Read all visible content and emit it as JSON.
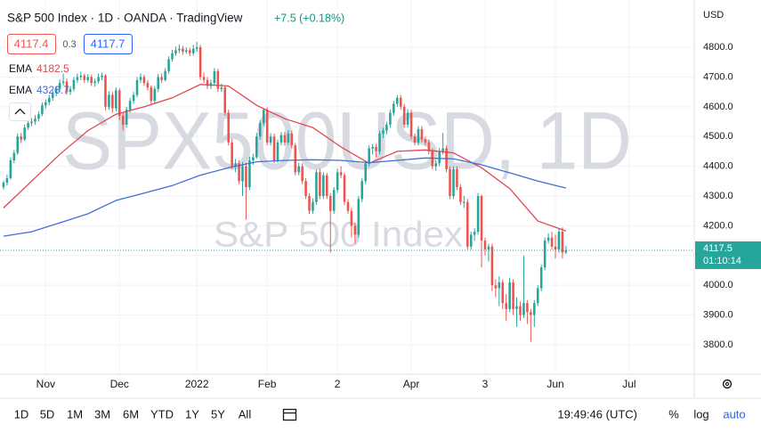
{
  "header": {
    "title": "S&P 500 Index · 1D · OANDA · TradingView",
    "change": "+7.5 (+0.18%)",
    "bid": "4117.4",
    "spread": "0.3",
    "ask": "4117.7"
  },
  "watermark": {
    "symbol": "SPX500USD, 1D",
    "description": "S&P 500 Index"
  },
  "toolbar": {
    "ranges": [
      "1D",
      "5D",
      "1M",
      "3M",
      "6M",
      "YTD",
      "1Y",
      "5Y",
      "All"
    ],
    "clock": "19:49:46 (UTC)",
    "percent": "%",
    "log": "log",
    "auto": "auto"
  },
  "chart_data": {
    "type": "candlestick",
    "currency": "USD",
    "up_color": "#26a69a",
    "down_color": "#ef5350",
    "grid": true,
    "last_price": 4117.5,
    "countdown": "01:10:14",
    "ylim": [
      3701,
      4959
    ],
    "yticks": [
      {
        "value": 3800,
        "label": "3800.0"
      },
      {
        "value": 3900,
        "label": "3900.0"
      },
      {
        "value": 4000,
        "label": "4000.0"
      },
      {
        "value": 4100,
        "label": "4100.0"
      },
      {
        "value": 4200,
        "label": "4200.0"
      },
      {
        "value": 4300,
        "label": "4300.0"
      },
      {
        "value": 4400,
        "label": "4400.0"
      },
      {
        "value": 4500,
        "label": "4500.0"
      },
      {
        "value": 4600,
        "label": "4600.0"
      },
      {
        "value": 4700,
        "label": "4700.0"
      },
      {
        "value": 4800,
        "label": "4800.0"
      }
    ],
    "xlim": [
      -1,
      196.5
    ],
    "xticks": [
      {
        "value": 12,
        "label": "Nov"
      },
      {
        "value": 33,
        "label": "Dec"
      },
      {
        "value": 55,
        "label": "2022"
      },
      {
        "value": 75,
        "label": "Feb"
      },
      {
        "value": 95,
        "label": "2"
      },
      {
        "value": 116,
        "label": "Apr"
      },
      {
        "value": 137,
        "label": "3"
      },
      {
        "value": 157,
        "label": "Jun"
      },
      {
        "value": 178,
        "label": "Jul"
      }
    ],
    "candles": [
      [
        4330,
        4352,
        4322,
        4345
      ],
      [
        4345,
        4372,
        4335,
        4360
      ],
      [
        4360,
        4430,
        4355,
        4420
      ],
      [
        4420,
        4455,
        4410,
        4445
      ],
      [
        4445,
        4510,
        4438,
        4500
      ],
      [
        4500,
        4512,
        4478,
        4490
      ],
      [
        4490,
        4540,
        4485,
        4530
      ],
      [
        4530,
        4555,
        4522,
        4545
      ],
      [
        4545,
        4562,
        4535,
        4550
      ],
      [
        4550,
        4572,
        4540,
        4560
      ],
      [
        4560,
        4585,
        4550,
        4575
      ],
      [
        4575,
        4615,
        4568,
        4605
      ],
      [
        4605,
        4625,
        4595,
        4615
      ],
      [
        4615,
        4640,
        4605,
        4630
      ],
      [
        4630,
        4655,
        4620,
        4645
      ],
      [
        4645,
        4670,
        4635,
        4660
      ],
      [
        4660,
        4692,
        4650,
        4680
      ],
      [
        4680,
        4712,
        4672,
        4685
      ],
      [
        4685,
        4695,
        4640,
        4650
      ],
      [
        4650,
        4670,
        4640,
        4660
      ],
      [
        4660,
        4700,
        4652,
        4690
      ],
      [
        4690,
        4712,
        4680,
        4700
      ],
      [
        4700,
        4718,
        4690,
        4705
      ],
      [
        4705,
        4712,
        4680,
        4690
      ],
      [
        4690,
        4710,
        4682,
        4700
      ],
      [
        4700,
        4708,
        4670,
        4680
      ],
      [
        4680,
        4695,
        4668,
        4685
      ],
      [
        4685,
        4712,
        4678,
        4700
      ],
      [
        4700,
        4715,
        4690,
        4705
      ],
      [
        4705,
        4710,
        4588,
        4600
      ],
      [
        4600,
        4652,
        4590,
        4640
      ],
      [
        4640,
        4650,
        4580,
        4595
      ],
      [
        4595,
        4665,
        4585,
        4655
      ],
      [
        4655,
        4662,
        4555,
        4570
      ],
      [
        4570,
        4580,
        4520,
        4540
      ],
      [
        4540,
        4600,
        4530,
        4590
      ],
      [
        4590,
        4630,
        4580,
        4620
      ],
      [
        4620,
        4650,
        4610,
        4640
      ],
      [
        4640,
        4700,
        4632,
        4690
      ],
      [
        4690,
        4712,
        4680,
        4700
      ],
      [
        4700,
        4708,
        4670,
        4680
      ],
      [
        4680,
        4690,
        4655,
        4665
      ],
      [
        4665,
        4672,
        4610,
        4620
      ],
      [
        4620,
        4670,
        4612,
        4660
      ],
      [
        4660,
        4710,
        4650,
        4700
      ],
      [
        4700,
        4712,
        4680,
        4690
      ],
      [
        4690,
        4730,
        4685,
        4720
      ],
      [
        4720,
        4770,
        4712,
        4760
      ],
      [
        4760,
        4792,
        4752,
        4780
      ],
      [
        4780,
        4802,
        4772,
        4790
      ],
      [
        4790,
        4810,
        4780,
        4795
      ],
      [
        4795,
        4805,
        4775,
        4785
      ],
      [
        4785,
        4800,
        4778,
        4790
      ],
      [
        4790,
        4798,
        4770,
        4780
      ],
      [
        4780,
        4808,
        4772,
        4795
      ],
      [
        4795,
        4818,
        4785,
        4800
      ],
      [
        4800,
        4808,
        4690,
        4700
      ],
      [
        4700,
        4715,
        4680,
        4690
      ],
      [
        4690,
        4700,
        4660,
        4670
      ],
      [
        4670,
        4692,
        4660,
        4680
      ],
      [
        4680,
        4730,
        4672,
        4720
      ],
      [
        4720,
        4728,
        4650,
        4660
      ],
      [
        4660,
        4678,
        4650,
        4665
      ],
      [
        4665,
        4672,
        4570,
        4580
      ],
      [
        4580,
        4590,
        4470,
        4480
      ],
      [
        4480,
        4492,
        4390,
        4400
      ],
      [
        4400,
        4425,
        4380,
        4410
      ],
      [
        4410,
        4420,
        4340,
        4350
      ],
      [
        4350,
        4415,
        4300,
        4400
      ],
      [
        4400,
        4412,
        4220,
        4330
      ],
      [
        4330,
        4432,
        4320,
        4420
      ],
      [
        4420,
        4442,
        4405,
        4430
      ],
      [
        4430,
        4512,
        4425,
        4500
      ],
      [
        4500,
        4555,
        4490,
        4545
      ],
      [
        4545,
        4595,
        4535,
        4590
      ],
      [
        4590,
        4598,
        4470,
        4480
      ],
      [
        4480,
        4512,
        4470,
        4500
      ],
      [
        4500,
        4510,
        4410,
        4420
      ],
      [
        4420,
        4490,
        4412,
        4480
      ],
      [
        4480,
        4515,
        4470,
        4505
      ],
      [
        4505,
        4515,
        4470,
        4480
      ],
      [
        4480,
        4522,
        4472,
        4510
      ],
      [
        4510,
        4520,
        4460,
        4470
      ],
      [
        4470,
        4478,
        4370,
        4380
      ],
      [
        4380,
        4412,
        4370,
        4400
      ],
      [
        4400,
        4410,
        4340,
        4350
      ],
      [
        4350,
        4360,
        4290,
        4300
      ],
      [
        4300,
        4310,
        4240,
        4250
      ],
      [
        4250,
        4292,
        4240,
        4280
      ],
      [
        4280,
        4390,
        4270,
        4380
      ],
      [
        4380,
        4392,
        4290,
        4300
      ],
      [
        4300,
        4380,
        4290,
        4370
      ],
      [
        4370,
        4378,
        4290,
        4300
      ],
      [
        4300,
        4310,
        4110,
        4250
      ],
      [
        4250,
        4330,
        4240,
        4320
      ],
      [
        4320,
        4392,
        4310,
        4380
      ],
      [
        4380,
        4400,
        4360,
        4370
      ],
      [
        4370,
        4378,
        4270,
        4280
      ],
      [
        4280,
        4290,
        4240,
        4250
      ],
      [
        4250,
        4260,
        4160,
        4200
      ],
      [
        4200,
        4210,
        4140,
        4170
      ],
      [
        4170,
        4300,
        4160,
        4290
      ],
      [
        4290,
        4360,
        4280,
        4350
      ],
      [
        4350,
        4420,
        4340,
        4410
      ],
      [
        4410,
        4470,
        4400,
        4460
      ],
      [
        4460,
        4475,
        4440,
        4465
      ],
      [
        4465,
        4475,
        4430,
        4450
      ],
      [
        4450,
        4520,
        4440,
        4510
      ],
      [
        4510,
        4530,
        4495,
        4520
      ],
      [
        4520,
        4550,
        4508,
        4540
      ],
      [
        4540,
        4590,
        4530,
        4580
      ],
      [
        4580,
        4620,
        4570,
        4610
      ],
      [
        4610,
        4640,
        4600,
        4630
      ],
      [
        4630,
        4640,
        4590,
        4600
      ],
      [
        4600,
        4610,
        4530,
        4540
      ],
      [
        4540,
        4592,
        4530,
        4580
      ],
      [
        4580,
        4590,
        4490,
        4500
      ],
      [
        4500,
        4510,
        4470,
        4480
      ],
      [
        4480,
        4535,
        4470,
        4525
      ],
      [
        4525,
        4535,
        4480,
        4490
      ],
      [
        4490,
        4500,
        4470,
        4480
      ],
      [
        4480,
        4490,
        4440,
        4450
      ],
      [
        4450,
        4460,
        4390,
        4400
      ],
      [
        4400,
        4420,
        4385,
        4410
      ],
      [
        4410,
        4462,
        4400,
        4450
      ],
      [
        4450,
        4512,
        4440,
        4460
      ],
      [
        4460,
        4470,
        4380,
        4390
      ],
      [
        4390,
        4400,
        4290,
        4300
      ],
      [
        4300,
        4400,
        4290,
        4390
      ],
      [
        4390,
        4400,
        4320,
        4330
      ],
      [
        4330,
        4340,
        4270,
        4280
      ],
      [
        4280,
        4300,
        4260,
        4280
      ],
      [
        4280,
        4290,
        4120,
        4130
      ],
      [
        4130,
        4180,
        4120,
        4170
      ],
      [
        4170,
        4192,
        4150,
        4180
      ],
      [
        4180,
        4310,
        4170,
        4300
      ],
      [
        4300,
        4305,
        4060,
        4150
      ],
      [
        4150,
        4160,
        4100,
        4120
      ],
      [
        4120,
        4140,
        4080,
        4130
      ],
      [
        4130,
        4140,
        3980,
        4000
      ],
      [
        4000,
        4020,
        3960,
        3990
      ],
      [
        3990,
        4030,
        3930,
        4010
      ],
      [
        4010,
        4020,
        3920,
        3940
      ],
      [
        3940,
        3970,
        3880,
        3920
      ],
      [
        3920,
        4025,
        3910,
        4010
      ],
      [
        4010,
        4020,
        3900,
        3920
      ],
      [
        3920,
        3960,
        3860,
        3930
      ],
      [
        3930,
        3945,
        3880,
        3900
      ],
      [
        3900,
        4100,
        3890,
        3940
      ],
      [
        3940,
        3950,
        3870,
        3910
      ],
      [
        3910,
        3920,
        3810,
        3900
      ],
      [
        3900,
        3950,
        3860,
        3940
      ],
      [
        3940,
        4000,
        3930,
        3990
      ],
      [
        3990,
        4070,
        3980,
        4060
      ],
      [
        4060,
        4160,
        4050,
        4150
      ],
      [
        4150,
        4175,
        4140,
        4160
      ],
      [
        4160,
        4180,
        4120,
        4130
      ],
      [
        4130,
        4170,
        4090,
        4120
      ],
      [
        4120,
        4190,
        4110,
        4180
      ],
      [
        4180,
        4195,
        4090,
        4110
      ],
      [
        4110,
        4132,
        4105,
        4117.5
      ]
    ],
    "series": [
      {
        "name": "EMA",
        "color": "#e0474f",
        "x": [
          0,
          8,
          16,
          24,
          32,
          40,
          48,
          56,
          64,
          72,
          80,
          88,
          96,
          104,
          112,
          120,
          128,
          136,
          144,
          152,
          160
        ],
        "values": [
          4260,
          4350,
          4440,
          4520,
          4575,
          4600,
          4630,
          4675,
          4670,
          4605,
          4560,
          4530,
          4465,
          4410,
          4450,
          4455,
          4445,
          4395,
          4325,
          4216,
          4182.5
        ]
      },
      {
        "name": "EMA",
        "color": "#3f6fd9",
        "x": [
          0,
          8,
          16,
          24,
          32,
          40,
          48,
          56,
          64,
          72,
          80,
          88,
          96,
          104,
          112,
          120,
          128,
          136,
          144,
          152,
          160
        ],
        "values": [
          4165,
          4180,
          4210,
          4240,
          4285,
          4310,
          4335,
          4370,
          4395,
          4415,
          4420,
          4422,
          4420,
          4412,
          4420,
          4428,
          4425,
          4405,
          4378,
          4350,
          4326.7
        ]
      }
    ]
  }
}
